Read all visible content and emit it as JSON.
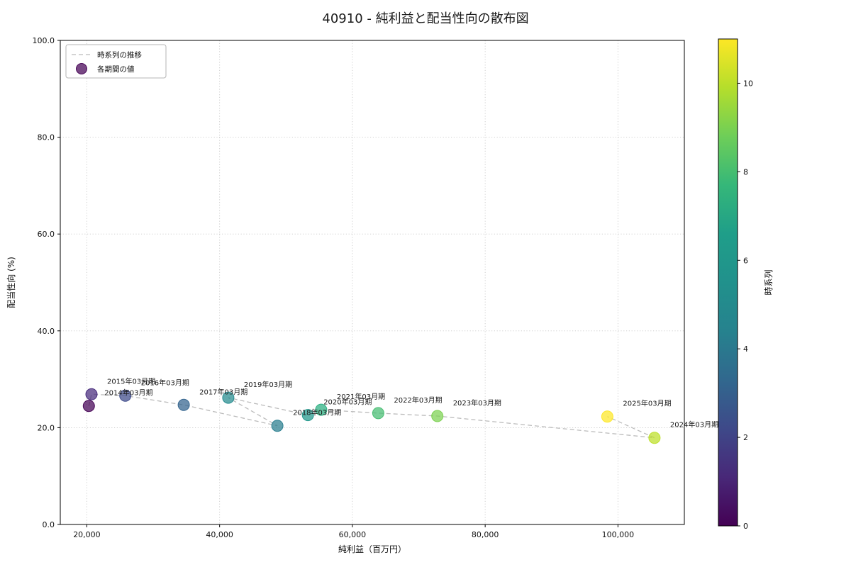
{
  "title": "40910 - 純利益と配当性向の散布図",
  "chart_data": {
    "type": "scatter",
    "title": "40910 - 純利益と配当性向の散布図",
    "xlabel": "純利益（百万円）",
    "ylabel": "配当性向 (%)",
    "xlim": [
      16000,
      110000
    ],
    "ylim": [
      0,
      100
    ],
    "xticks": [
      20000,
      40000,
      60000,
      80000,
      100000
    ],
    "xtick_labels": [
      "20,000",
      "40,000",
      "60,000",
      "80,000",
      "100,000"
    ],
    "yticks": [
      0,
      20,
      40,
      60,
      80,
      100
    ],
    "ytick_labels": [
      "0.0",
      "20.0",
      "40.0",
      "60.0",
      "80.0",
      "100.0"
    ],
    "grid": true,
    "legend": {
      "position": "upper-left",
      "items": [
        {
          "label": "時系列の推移",
          "marker": "dashed-line",
          "color": "#bbbbbb"
        },
        {
          "label": "各期間の値",
          "marker": "dot",
          "color": "#440154"
        }
      ]
    },
    "connector_line": {
      "style": "dashed",
      "color": "#bbbbbb",
      "order": "chronological"
    },
    "points": [
      {
        "label": "2014年03月期",
        "x": 20300,
        "y": 24.5,
        "t": 0,
        "color": "#440154"
      },
      {
        "label": "2015年03月期",
        "x": 20700,
        "y": 26.9,
        "t": 1,
        "color": "#46297c"
      },
      {
        "label": "2016年03月期",
        "x": 25800,
        "y": 26.6,
        "t": 2,
        "color": "#3d4a89"
      },
      {
        "label": "2017年03月期",
        "x": 34600,
        "y": 24.7,
        "t": 3,
        "color": "#32638d"
      },
      {
        "label": "2018年03月期",
        "x": 48700,
        "y": 20.4,
        "t": 4,
        "color": "#287d8e"
      },
      {
        "label": "2019年03月期",
        "x": 41300,
        "y": 26.2,
        "t": 5,
        "color": "#228a8d"
      },
      {
        "label": "2020年03月期",
        "x": 53300,
        "y": 22.6,
        "t": 6,
        "color": "#20978b"
      },
      {
        "label": "2021年03月期",
        "x": 55300,
        "y": 23.7,
        "t": 7,
        "color": "#28ae80"
      },
      {
        "label": "2022年03月期",
        "x": 63900,
        "y": 23.0,
        "t": 8,
        "color": "#44bd70"
      },
      {
        "label": "2023年03月期",
        "x": 72800,
        "y": 22.4,
        "t": 9,
        "color": "#7bd150"
      },
      {
        "label": "2024年03月期",
        "x": 105500,
        "y": 17.9,
        "t": 10,
        "color": "#bcdf27"
      },
      {
        "label": "2025年03月期",
        "x": 98400,
        "y": 22.3,
        "t": 11,
        "color": "#fde725"
      }
    ],
    "colorbar": {
      "label": "時系列",
      "min": 0,
      "max": 11,
      "ticks": [
        0,
        2,
        4,
        6,
        8,
        10
      ],
      "colormap": "viridis",
      "gradient": [
        "#440154",
        "#482878",
        "#3e4989",
        "#31688e",
        "#26828e",
        "#21918c",
        "#1f9e89",
        "#35b779",
        "#6ece58",
        "#b5de2b",
        "#fde725"
      ]
    }
  }
}
